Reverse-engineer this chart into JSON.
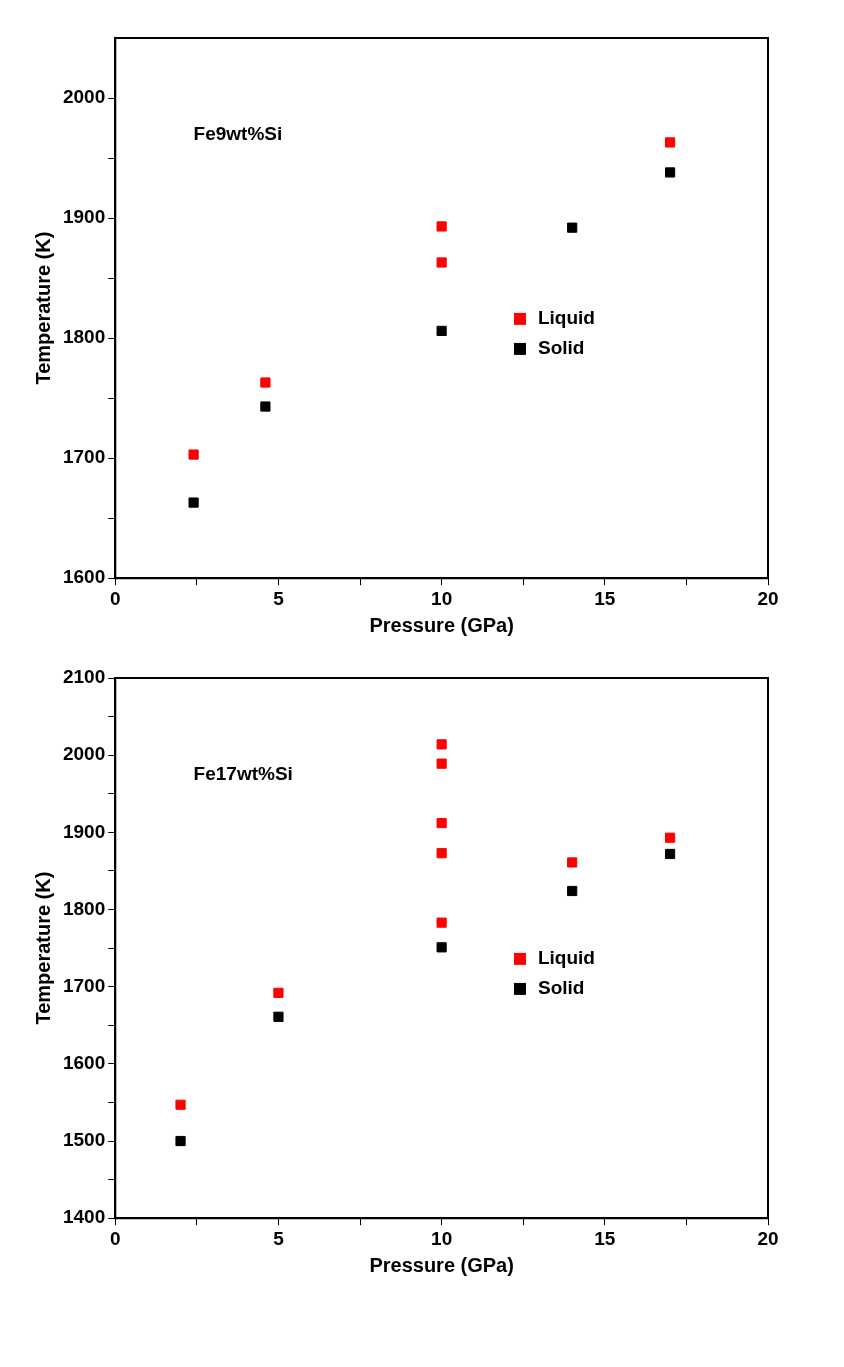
{
  "chart_data": [
    {
      "type": "scatter",
      "xlabel": "Pressure (GPa)",
      "ylabel": "Temperature (K)",
      "annotations": [
        "Fe9wt%Si"
      ],
      "xlim": [
        0,
        20
      ],
      "ylim": [
        1600,
        2050
      ],
      "xticks": [
        0,
        {
          "value": 2.5,
          "label": null
        },
        5,
        {
          "value": 7.5,
          "label": null
        },
        10,
        {
          "value": 12.5,
          "label": null
        },
        15,
        {
          "value": 17.5,
          "label": null
        },
        20
      ],
      "yticks": [
        1600,
        {
          "value": 1650,
          "label": null
        },
        1700,
        {
          "value": 1750,
          "label": null
        },
        1800,
        {
          "value": 1850,
          "label": null
        },
        1900,
        {
          "value": 1950,
          "label": null
        },
        2000
      ],
      "grid": false,
      "legend": "right",
      "marker": "square",
      "series": [
        {
          "name": "Liquid",
          "color": "#ff0000",
          "x": [
            2.4,
            4.6,
            10,
            10,
            17
          ],
          "values": [
            1703,
            1763,
            1893,
            1863,
            1963
          ]
        },
        {
          "name": "Solid",
          "color": "#000000",
          "x": [
            2.4,
            4.6,
            10,
            14,
            17
          ],
          "values": [
            1663,
            1743,
            1806,
            1892,
            1938
          ]
        }
      ]
    },
    {
      "type": "scatter",
      "xlabel": "Pressure (GPa)",
      "ylabel": "Temperature (K)",
      "annotations": [
        "Fe17wt%Si"
      ],
      "xlim": [
        0,
        20
      ],
      "ylim": [
        1400,
        2100
      ],
      "xticks": [
        0,
        {
          "value": 2.5,
          "label": null
        },
        5,
        {
          "value": 7.5,
          "label": null
        },
        10,
        {
          "value": 12.5,
          "label": null
        },
        15,
        {
          "value": 17.5,
          "label": null
        },
        20
      ],
      "yticks": [
        1400,
        {
          "value": 1450,
          "label": null
        },
        1500,
        {
          "value": 1550,
          "label": null
        },
        1600,
        {
          "value": 1650,
          "label": null
        },
        1700,
        {
          "value": 1750,
          "label": null
        },
        1800,
        {
          "value": 1850,
          "label": null
        },
        1900,
        {
          "value": 1950,
          "label": null
        },
        2000,
        {
          "value": 2050,
          "label": null
        },
        2100
      ],
      "grid": false,
      "legend": "right",
      "marker": "square",
      "series": [
        {
          "name": "Liquid",
          "color": "#ff0000",
          "x": [
            2,
            5,
            10,
            10,
            10,
            10,
            10,
            14,
            17
          ],
          "values": [
            1547,
            1692,
            2014,
            1989,
            1912,
            1873,
            1783,
            1861,
            1893
          ]
        },
        {
          "name": "Solid",
          "color": "#000000",
          "x": [
            2,
            5,
            10,
            14,
            17
          ],
          "values": [
            1500,
            1661,
            1751,
            1824,
            1872
          ]
        }
      ]
    }
  ]
}
